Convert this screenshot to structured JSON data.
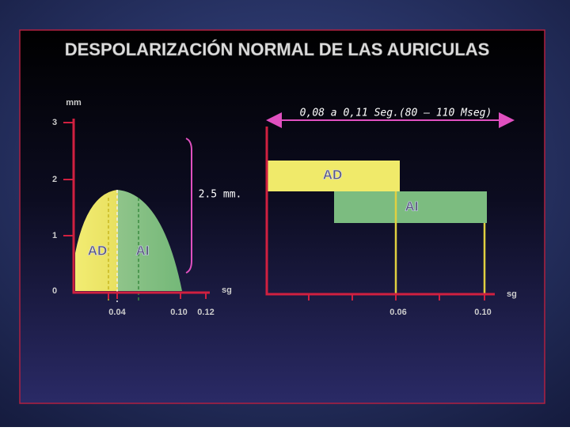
{
  "title": "DESPOLARIZACIÓN NORMAL DE LAS AURICULAS",
  "left_chart": {
    "y_axis_label": "mm",
    "y_ticks": [
      "3",
      "2",
      "1",
      "0"
    ],
    "x_axis_label": "sg",
    "x_ticks": [
      "0.04",
      "0.10",
      "0.12"
    ],
    "labels": [
      "AD",
      "AI"
    ],
    "annotation": "2.5 mm."
  },
  "right_chart": {
    "annotation": "0,08 a 0,11 Seg.(80 – 110 Mseg)",
    "labels": [
      "AD",
      "AI"
    ],
    "x_axis_label": "sg",
    "x_ticks": [
      "0.06",
      "0.10"
    ]
  }
}
